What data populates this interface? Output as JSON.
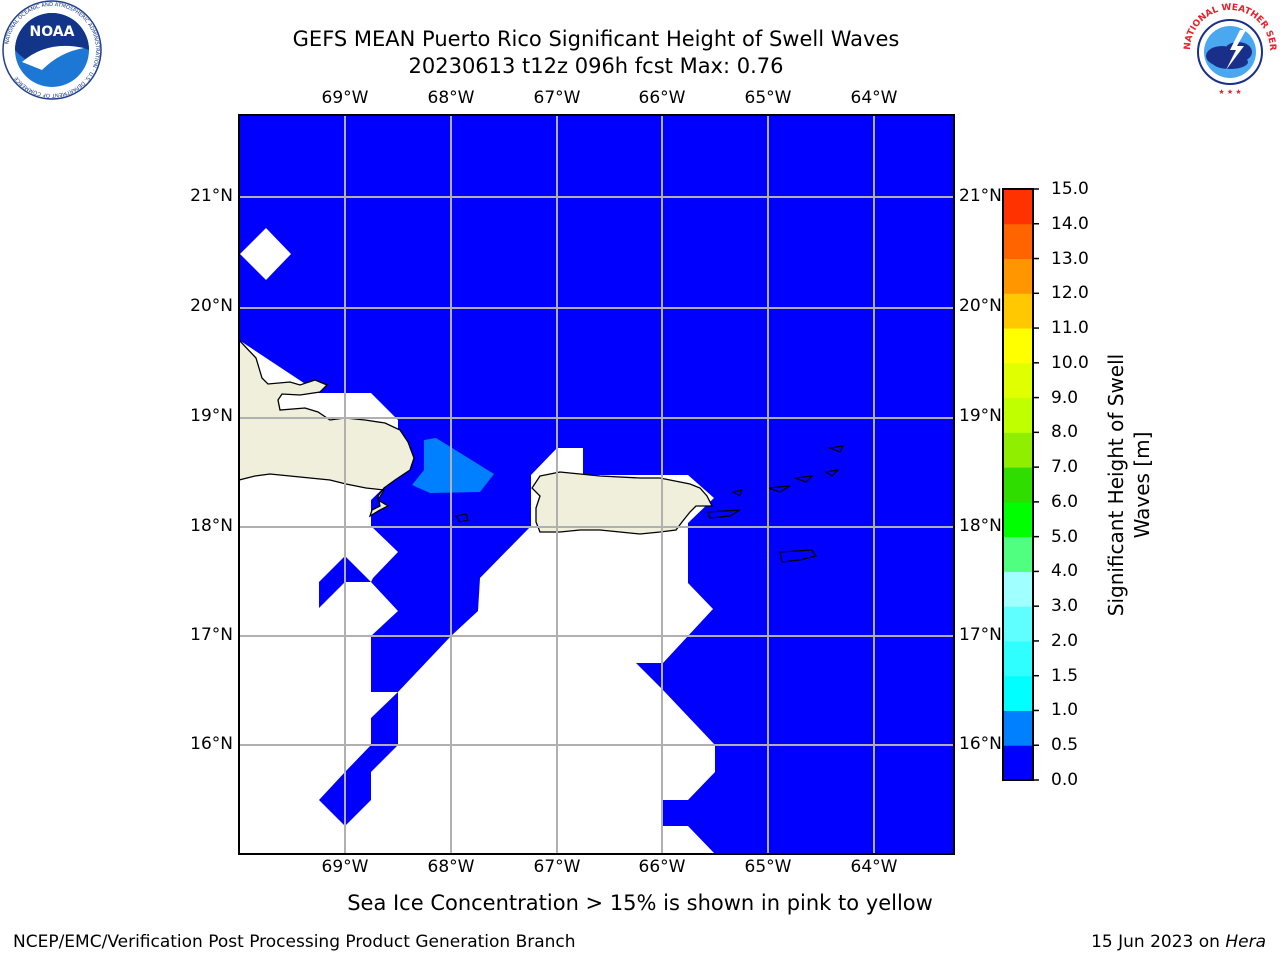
{
  "title_line1": "GEFS MEAN Puerto Rico Significant Height of Swell Waves",
  "title_line2": "20230613 t12z 096h fcst   Max: 0.76",
  "noaa_logo": {
    "name": "noaa-logo",
    "center_text": "NOAA",
    "ring_text": "NATIONAL OCEANIC AND ATMOSPHERIC ADMINISTRATION · U.S. DEPARTMENT OF COMMERCE"
  },
  "nws_logo": {
    "name": "nws-logo",
    "ring_text": "NATIONAL WEATHER SERVICE"
  },
  "map": {
    "lon_ticks": [
      "69°W",
      "68°W",
      "67°W",
      "66°W",
      "65°W",
      "64°W"
    ],
    "lat_ticks": [
      "21°N",
      "20°N",
      "19°N",
      "18°N",
      "17°N",
      "16°N"
    ],
    "lon_range": [
      -70.0,
      -63.25
    ],
    "lat_range": [
      15.0,
      21.75
    ],
    "colors": {
      "ocean_low": "#0000ff",
      "ocean_mid": "#0080ff",
      "land": "#efefdc",
      "grid": "#b0b0b0",
      "masked": "#ffffff"
    }
  },
  "colorbar": {
    "label": "Significant Height of Swell Waves [m]",
    "label_line1": "Significant Height of Swell",
    "label_line2": "Waves [m]",
    "ticks": [
      "0.0",
      "0.5",
      "1.0",
      "1.5",
      "2.0",
      "3.0",
      "4.0",
      "5.0",
      "6.0",
      "7.0",
      "8.0",
      "9.0",
      "10.0",
      "11.0",
      "12.0",
      "13.0",
      "14.0",
      "15.0"
    ],
    "colors": [
      "#0000ff",
      "#0080ff",
      "#00ffff",
      "#30ffff",
      "#60ffff",
      "#a0ffff",
      "#50ff80",
      "#00ff00",
      "#30dd00",
      "#90ee00",
      "#c0ff00",
      "#e0ff00",
      "#ffff00",
      "#ffc800",
      "#ff9600",
      "#ff6400",
      "#ff3200",
      "#ff0000"
    ]
  },
  "ice_note": "Sea Ice Concentration > 15% is shown in pink to yellow",
  "credit": "NCEP/EMC/Verification Post Processing Product Generation Branch",
  "date_text": "15 Jun 2023 on ",
  "date_system": "Hera"
}
